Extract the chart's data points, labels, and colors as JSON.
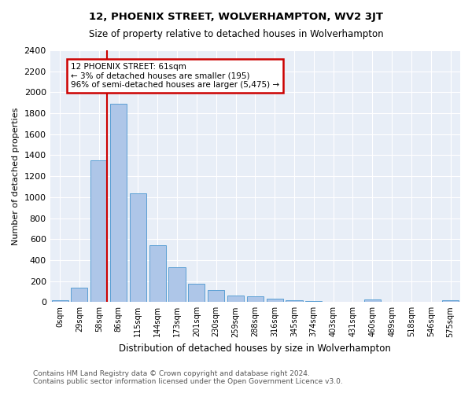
{
  "title": "12, PHOENIX STREET, WOLVERHAMPTON, WV2 3JT",
  "subtitle": "Size of property relative to detached houses in Wolverhampton",
  "xlabel": "Distribution of detached houses by size in Wolverhampton",
  "ylabel": "Number of detached properties",
  "categories": [
    "0sqm",
    "29sqm",
    "58sqm",
    "86sqm",
    "115sqm",
    "144sqm",
    "173sqm",
    "201sqm",
    "230sqm",
    "259sqm",
    "288sqm",
    "316sqm",
    "345sqm",
    "374sqm",
    "403sqm",
    "431sqm",
    "460sqm",
    "489sqm",
    "518sqm",
    "546sqm",
    "575sqm"
  ],
  "values": [
    15,
    140,
    1350,
    1890,
    1040,
    545,
    335,
    175,
    115,
    60,
    55,
    30,
    20,
    10,
    5,
    0,
    25,
    5,
    0,
    0,
    15
  ],
  "bar_color": "#aec6e8",
  "bar_edge_color": "#5a9fd4",
  "property_line_x": 2.425,
  "annotation_text": "12 PHOENIX STREET: 61sqm\n← 3% of detached houses are smaller (195)\n96% of semi-detached houses are larger (5,475) →",
  "annotation_box_color": "#ffffff",
  "annotation_box_edge_color": "#cc0000",
  "property_line_color": "#cc0000",
  "background_color": "#e8eef7",
  "footer_text": "Contains HM Land Registry data © Crown copyright and database right 2024.\nContains public sector information licensed under the Open Government Licence v3.0.",
  "ylim": [
    0,
    2400
  ],
  "yticks": [
    0,
    200,
    400,
    600,
    800,
    1000,
    1200,
    1400,
    1600,
    1800,
    2000,
    2200,
    2400
  ]
}
